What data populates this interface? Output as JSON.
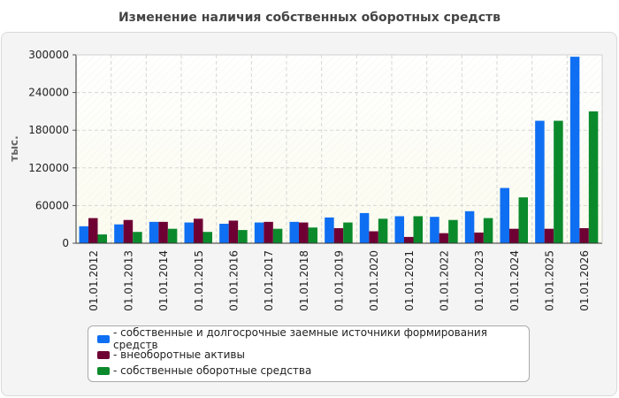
{
  "chart_data": {
    "type": "bar",
    "title": "Изменение наличия собственных оборотных средств",
    "ylabel": "тыс.",
    "xlabel": "",
    "ylim": [
      0,
      300000
    ],
    "yticks": [
      0,
      60000,
      120000,
      180000,
      240000,
      300000
    ],
    "ytick_labels": [
      "0",
      "60000",
      "120000",
      "180000",
      "240000",
      "300000"
    ],
    "grid": true,
    "legend_position": "bottom",
    "categories": [
      "01.01.2012",
      "01.01.2013",
      "01.01.2014",
      "01.01.2015",
      "01.01.2016",
      "01.01.2017",
      "01.01.2018",
      "01.01.2019",
      "01.01.2020",
      "01.01.2021",
      "01.01.2022",
      "01.01.2023",
      "01.01.2024",
      "01.01.2025",
      "01.01.2026"
    ],
    "series": [
      {
        "name": "- собственные и долгосрочные заемные источники формирования средств",
        "color": "#0f6ff2",
        "values": [
          27000,
          30000,
          34000,
          33000,
          31000,
          33000,
          34000,
          41000,
          48000,
          43000,
          42000,
          51000,
          88000,
          195000,
          297000
        ]
      },
      {
        "name": "- внеоборотные активы",
        "color": "#6e0034",
        "values": [
          40000,
          37000,
          34000,
          39000,
          36000,
          34000,
          33000,
          24000,
          19000,
          10000,
          16000,
          17000,
          23000,
          23000,
          24000
        ]
      },
      {
        "name": "- собственные оборотные средства",
        "color": "#0b8a2c",
        "values": [
          14000,
          18000,
          23000,
          18000,
          21000,
          23000,
          25000,
          33000,
          39000,
          43000,
          37000,
          40000,
          73000,
          195000,
          210000
        ]
      }
    ]
  }
}
